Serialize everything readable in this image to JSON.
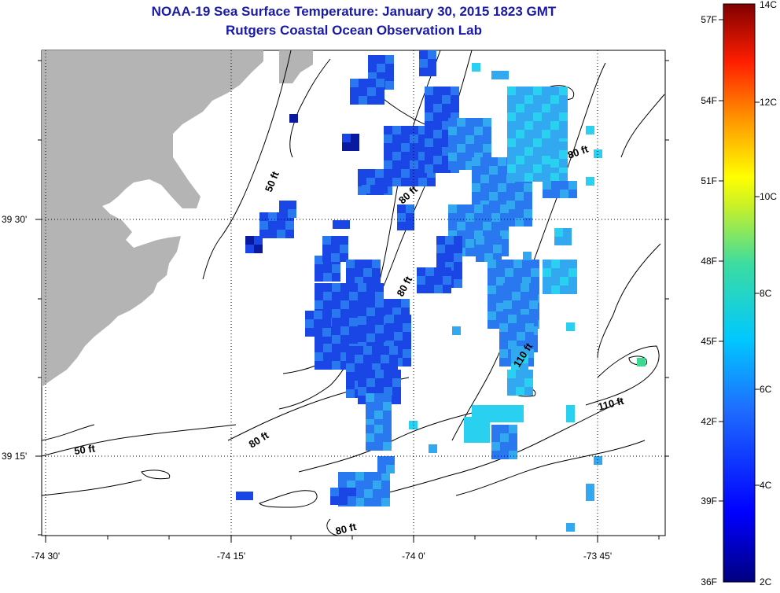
{
  "title": "NOAA-19 Sea Surface Temperature:  January 30, 2015 1823 GMT",
  "subtitle": "Rutgers Coastal Ocean Observation Lab",
  "lat_labels": [
    "39 30'",
    "39 15'"
  ],
  "lon_labels": [
    "-74 30'",
    "-74 15'",
    "-74 0'",
    "-73 45'"
  ],
  "contour_labels": [
    "50 ft",
    "50 ft",
    "80 ft",
    "80 ft",
    "80 ft",
    "80 ft",
    "80 ft",
    "110 ft",
    "110 ft"
  ],
  "colorbar": {
    "celsius_labels": [
      "14C",
      "12C",
      "10C",
      "8C",
      "6C",
      "4C",
      "2C"
    ],
    "fahrenheit_labels": [
      "57F",
      "54F",
      "51F",
      "48F",
      "45F",
      "42F",
      "39F",
      "36F"
    ]
  },
  "colors": {
    "land": "#b4b4b4",
    "title": "#1a1aa6",
    "background": "#ffffff"
  }
}
